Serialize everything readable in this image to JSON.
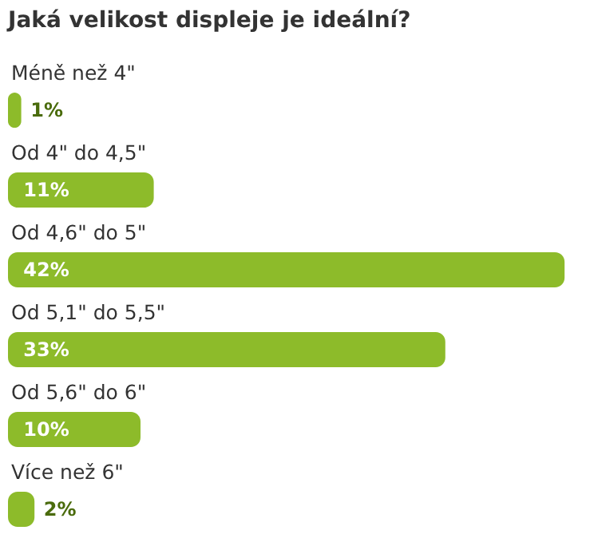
{
  "chart_data": {
    "type": "bar",
    "orientation": "horizontal",
    "title": "Jaká velikost displeje je ideální?",
    "categories": [
      "Méně než 4\"",
      "Od 4\" do 4,5\"",
      "Od 4,6\" do 5\"",
      "Od 5,1\" do 5,5\"",
      "Od 5,6\" do 6\"",
      "Více než 6\""
    ],
    "values": [
      1,
      11,
      42,
      33,
      10,
      2
    ],
    "value_labels": [
      "1%",
      "11%",
      "42%",
      "33%",
      "10%",
      "2%"
    ],
    "color": "#8dbb2a"
  }
}
